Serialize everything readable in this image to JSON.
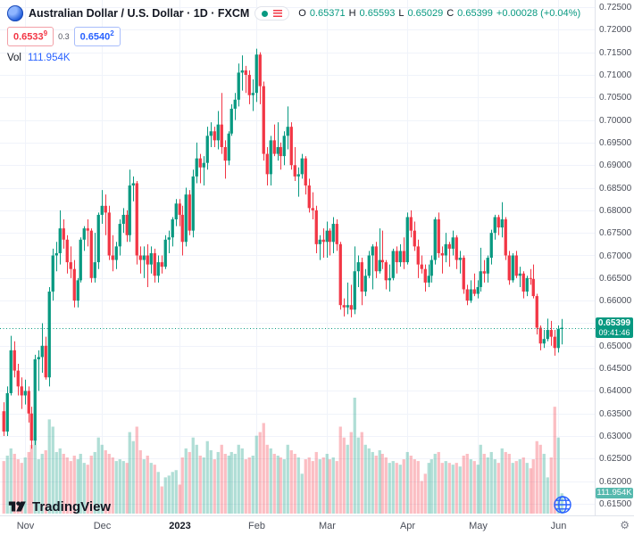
{
  "header": {
    "symbol_title": "Australian Dollar / U.S. Dollar · 1D · FXCM",
    "ohlc": {
      "o_label": "O",
      "o": "0.65371",
      "h_label": "H",
      "h": "0.65593",
      "l_label": "L",
      "l": "0.65029",
      "c_label": "C",
      "c": "0.65399",
      "change": "+0.00028 (+0.04%)"
    },
    "sell_price": "0.6533",
    "sell_sup": "9",
    "spread": "0.3",
    "buy_price": "0.6540",
    "buy_sup": "2",
    "vol_label": "Vol",
    "vol_value": "111.954K"
  },
  "price_label": {
    "price": "0.65399",
    "countdown": "09:41:46"
  },
  "volume_label": "111.954K",
  "logo_text": "TradingView",
  "icons": {
    "gear": "⚙"
  },
  "colors": {
    "up": "#089981",
    "down": "#f23645",
    "vol_up": "rgba(8,153,129,0.32)",
    "vol_down": "rgba(242,54,69,0.32)",
    "grid": "#f0f3fa",
    "accent": "#2962ff",
    "price_label_bg": "#089981",
    "vol_label_bg": "#56b9ae"
  },
  "chart_data": {
    "type": "candlestick",
    "title": "Australian Dollar / U.S. Dollar",
    "symbol": "AUD/USD",
    "interval": "1D",
    "exchange": "FXCM",
    "last_price": 0.65399,
    "volume_unit": "K",
    "price_axis": {
      "min": 0.615,
      "max": 0.725,
      "tick_step": 0.005,
      "tick_labels": [
        "0.72500",
        "0.72000",
        "0.71500",
        "0.71000",
        "0.70500",
        "0.70000",
        "0.69500",
        "0.69000",
        "0.68500",
        "0.68000",
        "0.67500",
        "0.67000",
        "0.66500",
        "0.66000",
        "0.65500",
        "0.65000",
        "0.64500",
        "0.64000",
        "0.63500",
        "0.63000",
        "0.62500",
        "0.62000",
        "0.61500"
      ]
    },
    "time_axis": {
      "ticks": [
        {
          "label": "Nov",
          "index": 6
        },
        {
          "label": "Dec",
          "index": 28
        },
        {
          "label": "2023",
          "index": 50,
          "bold": true
        },
        {
          "label": "Feb",
          "index": 72
        },
        {
          "label": "Mar",
          "index": 92
        },
        {
          "label": "Apr",
          "index": 115
        },
        {
          "label": "May",
          "index": 135
        },
        {
          "label": "Jun",
          "index": 158
        }
      ]
    },
    "bars": [
      [
        0.6355,
        0.6375,
        0.63,
        0.631,
        290
      ],
      [
        0.631,
        0.641,
        0.63,
        0.6395,
        320
      ],
      [
        0.6395,
        0.6522,
        0.639,
        0.649,
        360
      ],
      [
        0.649,
        0.651,
        0.643,
        0.6445,
        330
      ],
      [
        0.6445,
        0.646,
        0.639,
        0.641,
        300
      ],
      [
        0.641,
        0.643,
        0.636,
        0.639,
        280
      ],
      [
        0.639,
        0.6425,
        0.637,
        0.64,
        310
      ],
      [
        0.64,
        0.641,
        0.633,
        0.635,
        340
      ],
      [
        0.635,
        0.6365,
        0.6272,
        0.629,
        380
      ],
      [
        0.629,
        0.648,
        0.628,
        0.647,
        420
      ],
      [
        0.647,
        0.649,
        0.64,
        0.6475,
        300
      ],
      [
        0.6475,
        0.655,
        0.644,
        0.65,
        330
      ],
      [
        0.65,
        0.652,
        0.6425,
        0.643,
        350
      ],
      [
        0.643,
        0.663,
        0.641,
        0.662,
        520
      ],
      [
        0.662,
        0.6715,
        0.66,
        0.67,
        480
      ],
      [
        0.67,
        0.673,
        0.6665,
        0.6705,
        340
      ],
      [
        0.6705,
        0.68,
        0.668,
        0.676,
        360
      ],
      [
        0.676,
        0.678,
        0.6715,
        0.6735,
        330
      ],
      [
        0.6735,
        0.6745,
        0.666,
        0.6685,
        310
      ],
      [
        0.6685,
        0.672,
        0.665,
        0.667,
        290
      ],
      [
        0.667,
        0.669,
        0.6585,
        0.66,
        320
      ],
      [
        0.66,
        0.665,
        0.6585,
        0.6645,
        300
      ],
      [
        0.6645,
        0.674,
        0.664,
        0.6735,
        330
      ],
      [
        0.6735,
        0.6765,
        0.671,
        0.676,
        280
      ],
      [
        0.676,
        0.678,
        0.672,
        0.6755,
        270
      ],
      [
        0.6755,
        0.676,
        0.664,
        0.665,
        320
      ],
      [
        0.665,
        0.675,
        0.664,
        0.6685,
        340
      ],
      [
        0.6685,
        0.6795,
        0.667,
        0.679,
        420
      ],
      [
        0.679,
        0.6845,
        0.677,
        0.681,
        380
      ],
      [
        0.681,
        0.6835,
        0.6745,
        0.6795,
        350
      ],
      [
        0.6795,
        0.681,
        0.669,
        0.67,
        330
      ],
      [
        0.67,
        0.6745,
        0.6665,
        0.669,
        310
      ],
      [
        0.669,
        0.673,
        0.667,
        0.672,
        290
      ],
      [
        0.672,
        0.678,
        0.67,
        0.677,
        300
      ],
      [
        0.677,
        0.6805,
        0.675,
        0.679,
        290
      ],
      [
        0.679,
        0.68,
        0.673,
        0.6745,
        280
      ],
      [
        0.6745,
        0.689,
        0.673,
        0.6855,
        450
      ],
      [
        0.6855,
        0.6875,
        0.682,
        0.686,
        400
      ],
      [
        0.686,
        0.6865,
        0.668,
        0.67,
        480
      ],
      [
        0.67,
        0.672,
        0.666,
        0.669,
        350
      ],
      [
        0.669,
        0.672,
        0.665,
        0.67,
        300
      ],
      [
        0.67,
        0.6725,
        0.663,
        0.668,
        320
      ],
      [
        0.668,
        0.672,
        0.666,
        0.6705,
        280
      ],
      [
        0.6705,
        0.6715,
        0.664,
        0.6655,
        270
      ],
      [
        0.6655,
        0.67,
        0.664,
        0.6685,
        230
      ],
      [
        0.6685,
        0.67,
        0.666,
        0.6675,
        150
      ],
      [
        0.6675,
        0.6745,
        0.667,
        0.6735,
        200
      ],
      [
        0.6735,
        0.6755,
        0.6705,
        0.674,
        210
      ],
      [
        0.674,
        0.6785,
        0.672,
        0.678,
        230
      ],
      [
        0.678,
        0.6825,
        0.6765,
        0.6815,
        240
      ],
      [
        0.6815,
        0.6825,
        0.6765,
        0.679,
        160
      ],
      [
        0.679,
        0.681,
        0.67,
        0.673,
        310
      ],
      [
        0.673,
        0.685,
        0.672,
        0.6835,
        360
      ],
      [
        0.6835,
        0.6845,
        0.6745,
        0.6755,
        340
      ],
      [
        0.6755,
        0.689,
        0.674,
        0.6875,
        420
      ],
      [
        0.6875,
        0.695,
        0.686,
        0.6915,
        380
      ],
      [
        0.6915,
        0.6925,
        0.686,
        0.6895,
        320
      ],
      [
        0.6895,
        0.692,
        0.6855,
        0.6905,
        310
      ],
      [
        0.6905,
        0.6985,
        0.689,
        0.6965,
        400
      ],
      [
        0.6965,
        0.6995,
        0.694,
        0.6975,
        350
      ],
      [
        0.6975,
        0.6985,
        0.694,
        0.6955,
        300
      ],
      [
        0.6955,
        0.702,
        0.6935,
        0.699,
        340
      ],
      [
        0.699,
        0.706,
        0.6925,
        0.694,
        380
      ],
      [
        0.694,
        0.6955,
        0.687,
        0.691,
        330
      ],
      [
        0.691,
        0.6975,
        0.69,
        0.697,
        320
      ],
      [
        0.697,
        0.7035,
        0.6965,
        0.7025,
        340
      ],
      [
        0.7025,
        0.706,
        0.7,
        0.7045,
        330
      ],
      [
        0.7045,
        0.7125,
        0.703,
        0.7105,
        380
      ],
      [
        0.7105,
        0.7143,
        0.7065,
        0.711,
        360
      ],
      [
        0.711,
        0.712,
        0.706,
        0.71,
        300
      ],
      [
        0.71,
        0.711,
        0.7035,
        0.7055,
        310
      ],
      [
        0.7055,
        0.709,
        0.702,
        0.706,
        320
      ],
      [
        0.706,
        0.7158,
        0.704,
        0.7145,
        430
      ],
      [
        0.7145,
        0.715,
        0.7035,
        0.7075,
        450
      ],
      [
        0.7075,
        0.7085,
        0.691,
        0.6925,
        500
      ],
      [
        0.6925,
        0.694,
        0.6855,
        0.688,
        380
      ],
      [
        0.688,
        0.6965,
        0.6855,
        0.6955,
        360
      ],
      [
        0.6955,
        0.699,
        0.692,
        0.6925,
        330
      ],
      [
        0.6925,
        0.6995,
        0.691,
        0.694,
        320
      ],
      [
        0.694,
        0.695,
        0.689,
        0.692,
        310
      ],
      [
        0.692,
        0.6975,
        0.69,
        0.6965,
        300
      ],
      [
        0.6965,
        0.703,
        0.6935,
        0.6985,
        380
      ],
      [
        0.6985,
        0.6995,
        0.689,
        0.69,
        350
      ],
      [
        0.69,
        0.694,
        0.6865,
        0.6875,
        330
      ],
      [
        0.6875,
        0.6895,
        0.683,
        0.688,
        310
      ],
      [
        0.688,
        0.6925,
        0.687,
        0.6915,
        220
      ],
      [
        0.6915,
        0.692,
        0.6835,
        0.6855,
        300
      ],
      [
        0.6855,
        0.687,
        0.6795,
        0.6805,
        310
      ],
      [
        0.6805,
        0.684,
        0.678,
        0.68,
        290
      ],
      [
        0.68,
        0.681,
        0.6705,
        0.6725,
        340
      ],
      [
        0.6725,
        0.6745,
        0.669,
        0.6735,
        300
      ],
      [
        0.6735,
        0.676,
        0.6695,
        0.673,
        310
      ],
      [
        0.673,
        0.6775,
        0.6695,
        0.6755,
        330
      ],
      [
        0.6755,
        0.676,
        0.67,
        0.673,
        300
      ],
      [
        0.673,
        0.6785,
        0.6705,
        0.677,
        310
      ],
      [
        0.677,
        0.678,
        0.671,
        0.6725,
        290
      ],
      [
        0.6725,
        0.673,
        0.658,
        0.659,
        480
      ],
      [
        0.659,
        0.6605,
        0.6565,
        0.6585,
        420
      ],
      [
        0.6585,
        0.664,
        0.657,
        0.659,
        380
      ],
      [
        0.659,
        0.6635,
        0.6563,
        0.658,
        450
      ],
      [
        0.658,
        0.672,
        0.657,
        0.6665,
        640
      ],
      [
        0.6665,
        0.67,
        0.663,
        0.6685,
        420
      ],
      [
        0.6685,
        0.6695,
        0.659,
        0.662,
        450
      ],
      [
        0.662,
        0.667,
        0.661,
        0.6655,
        380
      ],
      [
        0.6655,
        0.671,
        0.665,
        0.67,
        360
      ],
      [
        0.67,
        0.6725,
        0.6625,
        0.672,
        340
      ],
      [
        0.672,
        0.673,
        0.665,
        0.6665,
        320
      ],
      [
        0.6665,
        0.676,
        0.666,
        0.669,
        350
      ],
      [
        0.669,
        0.6755,
        0.667,
        0.6685,
        330
      ],
      [
        0.6685,
        0.669,
        0.6625,
        0.6645,
        310
      ],
      [
        0.6645,
        0.668,
        0.662,
        0.665,
        280
      ],
      [
        0.665,
        0.6715,
        0.6645,
        0.671,
        290
      ],
      [
        0.671,
        0.672,
        0.666,
        0.6685,
        280
      ],
      [
        0.6685,
        0.6725,
        0.6675,
        0.671,
        270
      ],
      [
        0.671,
        0.674,
        0.667,
        0.6685,
        300
      ],
      [
        0.6685,
        0.6795,
        0.668,
        0.6785,
        340
      ],
      [
        0.6785,
        0.68,
        0.674,
        0.6755,
        320
      ],
      [
        0.6755,
        0.6775,
        0.671,
        0.672,
        300
      ],
      [
        0.672,
        0.6735,
        0.665,
        0.668,
        290
      ],
      [
        0.668,
        0.67,
        0.666,
        0.667,
        180
      ],
      [
        0.667,
        0.668,
        0.662,
        0.664,
        220
      ],
      [
        0.664,
        0.668,
        0.663,
        0.6655,
        280
      ],
      [
        0.6655,
        0.67,
        0.664,
        0.669,
        300
      ],
      [
        0.669,
        0.6785,
        0.668,
        0.678,
        330
      ],
      [
        0.678,
        0.6795,
        0.6695,
        0.6705,
        340
      ],
      [
        0.6705,
        0.672,
        0.666,
        0.67,
        280
      ],
      [
        0.67,
        0.675,
        0.6685,
        0.6725,
        290
      ],
      [
        0.6725,
        0.673,
        0.6675,
        0.6715,
        280
      ],
      [
        0.6715,
        0.6755,
        0.67,
        0.674,
        270
      ],
      [
        0.674,
        0.6745,
        0.667,
        0.669,
        280
      ],
      [
        0.669,
        0.671,
        0.666,
        0.6695,
        260
      ],
      [
        0.6695,
        0.67,
        0.6615,
        0.6625,
        320
      ],
      [
        0.6625,
        0.6635,
        0.659,
        0.66,
        330
      ],
      [
        0.66,
        0.6645,
        0.6595,
        0.6625,
        300
      ],
      [
        0.6625,
        0.666,
        0.661,
        0.6615,
        290
      ],
      [
        0.6615,
        0.6645,
        0.6605,
        0.663,
        270
      ],
      [
        0.663,
        0.6717,
        0.662,
        0.6665,
        380
      ],
      [
        0.6665,
        0.669,
        0.664,
        0.666,
        330
      ],
      [
        0.666,
        0.67,
        0.664,
        0.6695,
        310
      ],
      [
        0.6695,
        0.6757,
        0.668,
        0.675,
        340
      ],
      [
        0.675,
        0.679,
        0.6735,
        0.6785,
        300
      ],
      [
        0.6785,
        0.679,
        0.6745,
        0.6762,
        280
      ],
      [
        0.6762,
        0.6818,
        0.674,
        0.678,
        360
      ],
      [
        0.678,
        0.6785,
        0.669,
        0.67,
        340
      ],
      [
        0.67,
        0.671,
        0.6635,
        0.6645,
        330
      ],
      [
        0.6645,
        0.6705,
        0.664,
        0.67,
        280
      ],
      [
        0.67,
        0.671,
        0.665,
        0.6655,
        290
      ],
      [
        0.6655,
        0.6675,
        0.663,
        0.666,
        300
      ],
      [
        0.666,
        0.6665,
        0.6605,
        0.662,
        310
      ],
      [
        0.662,
        0.6655,
        0.661,
        0.665,
        280
      ],
      [
        0.665,
        0.667,
        0.6635,
        0.6648,
        250
      ],
      [
        0.6648,
        0.668,
        0.6605,
        0.661,
        300
      ],
      [
        0.661,
        0.6615,
        0.6525,
        0.654,
        400
      ],
      [
        0.654,
        0.6545,
        0.649,
        0.6505,
        380
      ],
      [
        0.6505,
        0.6535,
        0.6495,
        0.6515,
        330
      ],
      [
        0.6515,
        0.656,
        0.651,
        0.6535,
        200
      ],
      [
        0.6535,
        0.6555,
        0.65,
        0.652,
        310
      ],
      [
        0.652,
        0.6535,
        0.6478,
        0.6495,
        590
      ],
      [
        0.6495,
        0.6545,
        0.6485,
        0.6537,
        420
      ],
      [
        0.65371,
        0.65593,
        0.65029,
        0.65399,
        112
      ]
    ]
  }
}
